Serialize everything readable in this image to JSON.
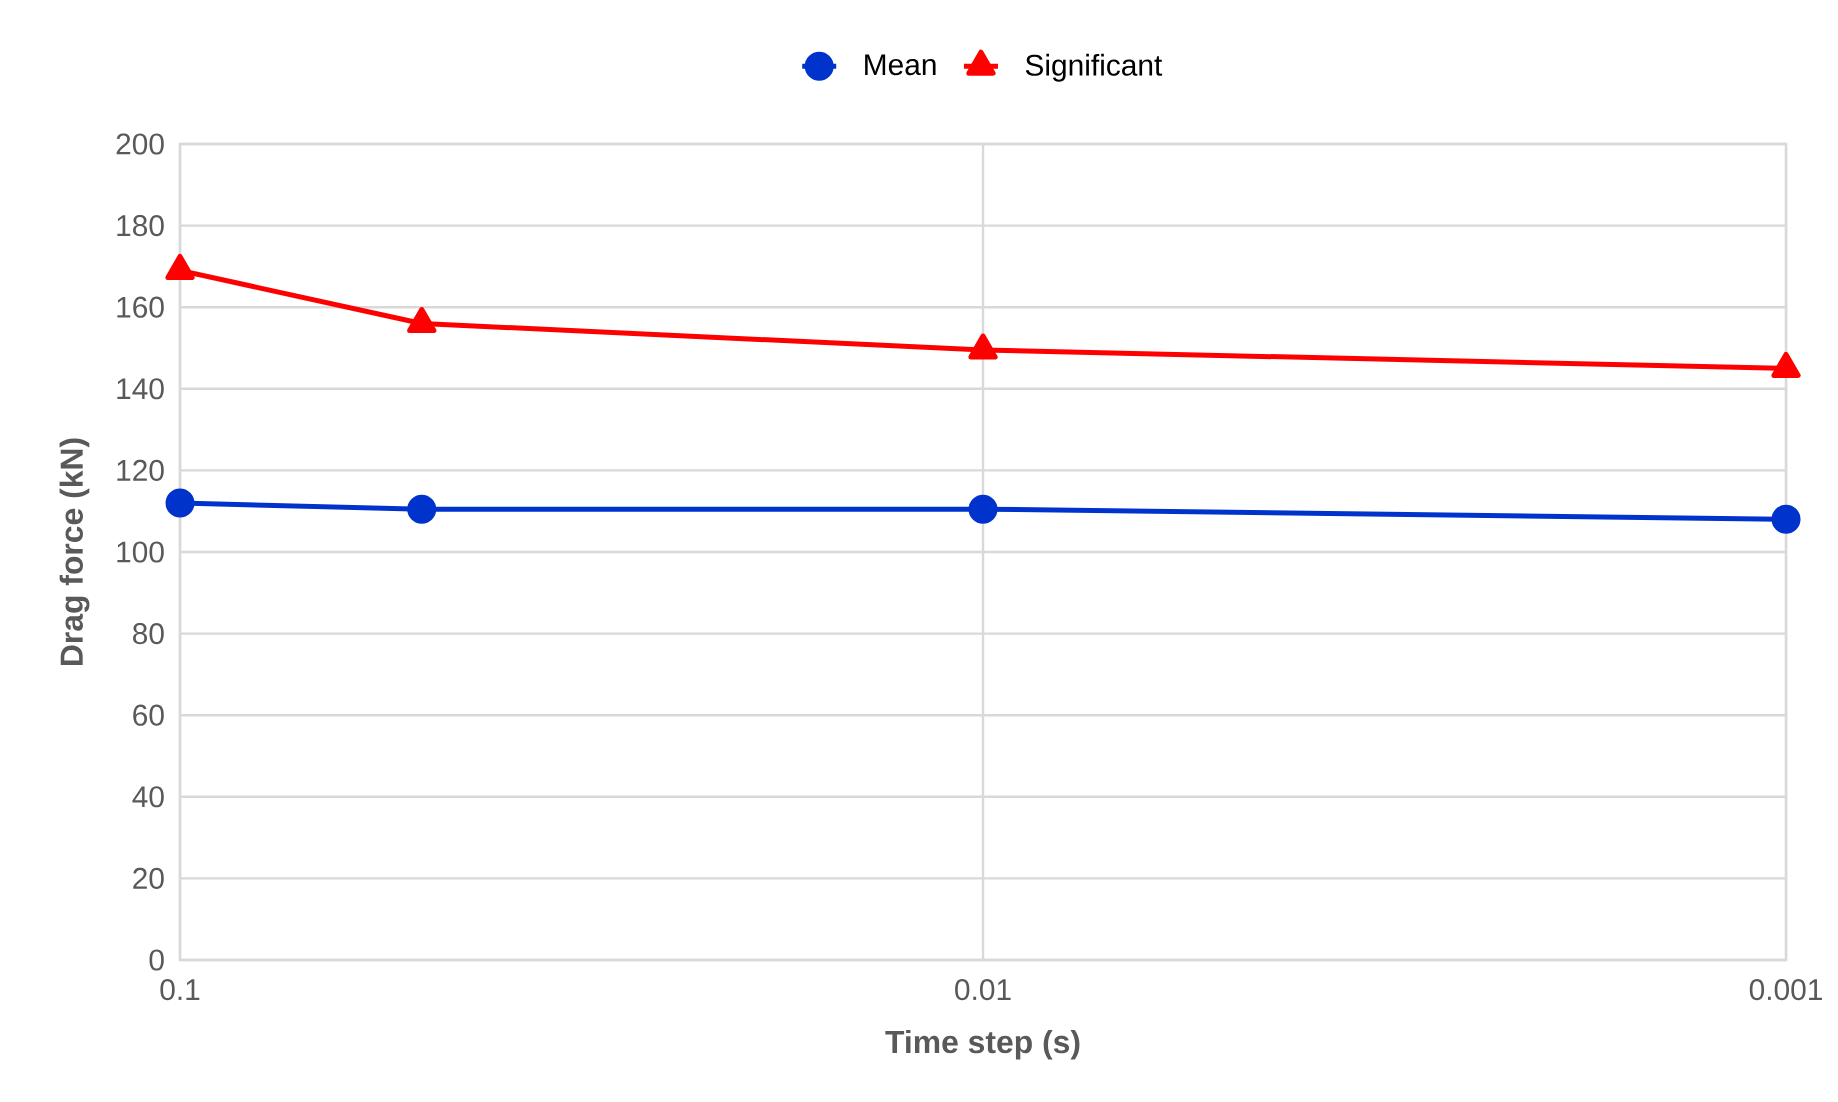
{
  "chart_data": {
    "type": "line",
    "xlabel": "Time step (s)",
    "ylabel": "Drag force (kN)",
    "x": [
      0.1,
      0.05,
      0.01,
      0.001
    ],
    "series": [
      {
        "name": "Mean",
        "color": "#0033cc",
        "marker": "circle",
        "values": [
          112,
          110.5,
          110.5,
          108
        ]
      },
      {
        "name": "Significant",
        "color": "#ff0000",
        "marker": "triangle",
        "values": [
          169,
          156,
          149.5,
          145
        ]
      }
    ],
    "log": "x",
    "xlim": [
      0.1,
      0.001
    ],
    "xticks": [
      0.1,
      0.01,
      0.001
    ],
    "ylim": [
      0,
      200
    ],
    "yticks": [
      0,
      20,
      40,
      60,
      80,
      100,
      120,
      140,
      160,
      180,
      200
    ],
    "grid": true,
    "legend": "top",
    "line_style": "solid"
  }
}
